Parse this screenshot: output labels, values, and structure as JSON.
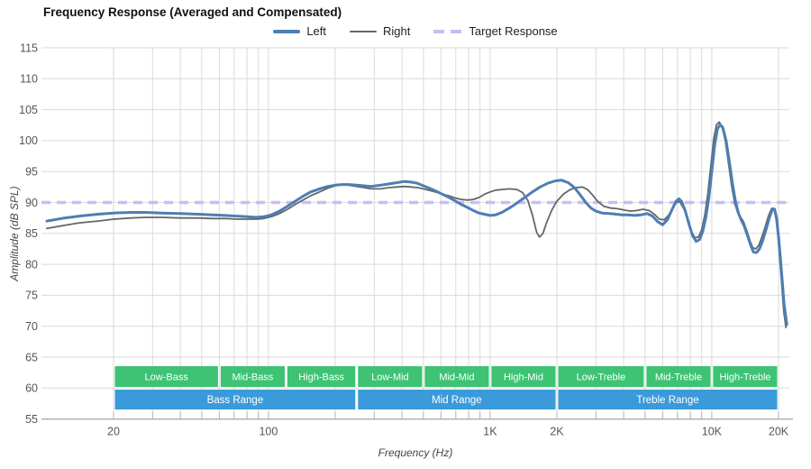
{
  "header": {
    "title": "Frequency Response (Averaged and Compensated)"
  },
  "legend": [
    {
      "id": "left",
      "label": "Left",
      "color": "#4d7eb4",
      "style": "solid-thick"
    },
    {
      "id": "right",
      "label": "Right",
      "color": "#666666",
      "style": "solid-thin"
    },
    {
      "id": "target",
      "label": "Target Response",
      "color": "#c6bef3",
      "style": "dashed"
    }
  ],
  "chart_data": {
    "type": "line",
    "title": "Frequency Response (Averaged and Compensated)",
    "xlabel": "Frequency (Hz)",
    "ylabel": "Amplitude (dB SPL)",
    "x_scale": "log",
    "xlim": [
      9.5,
      22300
    ],
    "ylim": [
      55,
      115
    ],
    "grid": true,
    "legend_position": "top-center",
    "y_ticks": [
      115,
      110,
      105,
      100,
      95,
      90,
      85,
      80,
      75,
      70,
      65,
      60,
      55
    ],
    "x_ticks": [
      {
        "f": 20,
        "label": "20"
      },
      {
        "f": 100,
        "label": "100"
      },
      {
        "f": 1000,
        "label": "1K"
      },
      {
        "f": 2000,
        "label": "2K"
      },
      {
        "f": 10000,
        "label": "10K"
      },
      {
        "f": 20000,
        "label": "20K"
      }
    ],
    "minor_gridlines": [
      20,
      30,
      40,
      50,
      60,
      70,
      80,
      90,
      100,
      200,
      300,
      400,
      500,
      600,
      700,
      800,
      900,
      1000,
      2000,
      3000,
      4000,
      5000,
      6000,
      7000,
      8000,
      9000,
      10000,
      20000
    ],
    "target": {
      "name": "Target Response",
      "db": 90,
      "color": "#c6bef3"
    },
    "series": [
      {
        "name": "Left",
        "color": "#4d7eb4",
        "width": 3,
        "points": [
          [
            10,
            87.0
          ],
          [
            12,
            87.5
          ],
          [
            14,
            87.8
          ],
          [
            17,
            88.1
          ],
          [
            20,
            88.3
          ],
          [
            24,
            88.4
          ],
          [
            28,
            88.4
          ],
          [
            33,
            88.3
          ],
          [
            40,
            88.2
          ],
          [
            48,
            88.1
          ],
          [
            56,
            88.0
          ],
          [
            64,
            87.9
          ],
          [
            72,
            87.8
          ],
          [
            80,
            87.7
          ],
          [
            88,
            87.6
          ],
          [
            95,
            87.7
          ],
          [
            103,
            88.0
          ],
          [
            112,
            88.6
          ],
          [
            122,
            89.4
          ],
          [
            132,
            90.2
          ],
          [
            143,
            91.0
          ],
          [
            155,
            91.7
          ],
          [
            170,
            92.2
          ],
          [
            185,
            92.6
          ],
          [
            200,
            92.8
          ],
          [
            215,
            92.9
          ],
          [
            230,
            92.9
          ],
          [
            250,
            92.8
          ],
          [
            270,
            92.7
          ],
          [
            290,
            92.6
          ],
          [
            320,
            92.8
          ],
          [
            350,
            93.0
          ],
          [
            380,
            93.2
          ],
          [
            410,
            93.4
          ],
          [
            440,
            93.3
          ],
          [
            470,
            93.1
          ],
          [
            500,
            92.7
          ],
          [
            540,
            92.2
          ],
          [
            580,
            91.7
          ],
          [
            620,
            91.2
          ],
          [
            660,
            90.7
          ],
          [
            700,
            90.2
          ],
          [
            740,
            89.7
          ],
          [
            790,
            89.2
          ],
          [
            840,
            88.7
          ],
          [
            890,
            88.3
          ],
          [
            940,
            88.1
          ],
          [
            1000,
            87.9
          ],
          [
            1060,
            88.0
          ],
          [
            1130,
            88.4
          ],
          [
            1220,
            89.1
          ],
          [
            1320,
            89.9
          ],
          [
            1430,
            90.8
          ],
          [
            1550,
            91.7
          ],
          [
            1680,
            92.5
          ],
          [
            1820,
            93.1
          ],
          [
            1970,
            93.5
          ],
          [
            2100,
            93.6
          ],
          [
            2250,
            93.2
          ],
          [
            2400,
            92.4
          ],
          [
            2550,
            91.2
          ],
          [
            2700,
            90.0
          ],
          [
            2850,
            89.1
          ],
          [
            3000,
            88.6
          ],
          [
            3200,
            88.3
          ],
          [
            3450,
            88.2
          ],
          [
            3700,
            88.1
          ],
          [
            3950,
            88.0
          ],
          [
            4200,
            88.0
          ],
          [
            4500,
            87.9
          ],
          [
            4800,
            88.0
          ],
          [
            5100,
            88.2
          ],
          [
            5400,
            87.8
          ],
          [
            5700,
            86.9
          ],
          [
            6000,
            86.4
          ],
          [
            6300,
            87.2
          ],
          [
            6600,
            88.8
          ],
          [
            6900,
            90.2
          ],
          [
            7100,
            90.6
          ],
          [
            7300,
            90.2
          ],
          [
            7600,
            88.6
          ],
          [
            7900,
            86.4
          ],
          [
            8200,
            84.6
          ],
          [
            8500,
            83.7
          ],
          [
            8800,
            84.0
          ],
          [
            9100,
            85.3
          ],
          [
            9400,
            87.6
          ],
          [
            9700,
            90.8
          ],
          [
            10000,
            95.0
          ],
          [
            10300,
            99.3
          ],
          [
            10600,
            101.9
          ],
          [
            10900,
            102.6
          ],
          [
            11200,
            102.1
          ],
          [
            11600,
            100.0
          ],
          [
            12000,
            96.6
          ],
          [
            12400,
            93.0
          ],
          [
            12800,
            90.1
          ],
          [
            13200,
            88.2
          ],
          [
            13600,
            87.1
          ],
          [
            14000,
            86.2
          ],
          [
            14500,
            84.6
          ],
          [
            15000,
            83.0
          ],
          [
            15400,
            82.0
          ],
          [
            15900,
            81.9
          ],
          [
            16400,
            82.5
          ],
          [
            17000,
            83.9
          ],
          [
            17600,
            85.7
          ],
          [
            18200,
            87.6
          ],
          [
            18800,
            89.0
          ],
          [
            19200,
            88.9
          ],
          [
            19600,
            87.5
          ],
          [
            20000,
            84.5
          ],
          [
            20600,
            79.0
          ],
          [
            21200,
            73.5
          ],
          [
            21800,
            70.3
          ]
        ]
      },
      {
        "name": "Right",
        "color": "#666666",
        "width": 1.8,
        "points": [
          [
            10,
            85.8
          ],
          [
            12,
            86.3
          ],
          [
            14,
            86.7
          ],
          [
            17,
            87.0
          ],
          [
            20,
            87.3
          ],
          [
            24,
            87.5
          ],
          [
            28,
            87.6
          ],
          [
            33,
            87.6
          ],
          [
            40,
            87.5
          ],
          [
            48,
            87.5
          ],
          [
            56,
            87.4
          ],
          [
            64,
            87.4
          ],
          [
            72,
            87.3
          ],
          [
            80,
            87.3
          ],
          [
            88,
            87.3
          ],
          [
            95,
            87.4
          ],
          [
            103,
            87.7
          ],
          [
            112,
            88.2
          ],
          [
            122,
            88.9
          ],
          [
            132,
            89.7
          ],
          [
            143,
            90.4
          ],
          [
            155,
            91.1
          ],
          [
            170,
            91.7
          ],
          [
            185,
            92.3
          ],
          [
            200,
            92.7
          ],
          [
            215,
            92.9
          ],
          [
            230,
            92.8
          ],
          [
            250,
            92.6
          ],
          [
            270,
            92.4
          ],
          [
            290,
            92.2
          ],
          [
            320,
            92.2
          ],
          [
            350,
            92.4
          ],
          [
            380,
            92.5
          ],
          [
            410,
            92.6
          ],
          [
            440,
            92.5
          ],
          [
            470,
            92.4
          ],
          [
            500,
            92.2
          ],
          [
            540,
            91.9
          ],
          [
            580,
            91.6
          ],
          [
            620,
            91.3
          ],
          [
            660,
            91.0
          ],
          [
            700,
            90.7
          ],
          [
            740,
            90.5
          ],
          [
            790,
            90.4
          ],
          [
            840,
            90.5
          ],
          [
            890,
            90.8
          ],
          [
            940,
            91.3
          ],
          [
            1000,
            91.7
          ],
          [
            1060,
            92.0
          ],
          [
            1130,
            92.1
          ],
          [
            1220,
            92.2
          ],
          [
            1320,
            92.1
          ],
          [
            1400,
            91.6
          ],
          [
            1480,
            90.3
          ],
          [
            1550,
            88.0
          ],
          [
            1620,
            85.2
          ],
          [
            1670,
            84.4
          ],
          [
            1730,
            85.0
          ],
          [
            1800,
            86.8
          ],
          [
            1900,
            88.8
          ],
          [
            2000,
            90.2
          ],
          [
            2150,
            91.4
          ],
          [
            2300,
            92.1
          ],
          [
            2450,
            92.4
          ],
          [
            2600,
            92.5
          ],
          [
            2750,
            92.1
          ],
          [
            2900,
            91.2
          ],
          [
            3050,
            90.2
          ],
          [
            3250,
            89.4
          ],
          [
            3500,
            89.1
          ],
          [
            3750,
            89.0
          ],
          [
            4000,
            88.8
          ],
          [
            4300,
            88.6
          ],
          [
            4600,
            88.7
          ],
          [
            4900,
            88.9
          ],
          [
            5200,
            88.7
          ],
          [
            5500,
            88.1
          ],
          [
            5800,
            87.3
          ],
          [
            6100,
            87.2
          ],
          [
            6400,
            88.0
          ],
          [
            6700,
            89.3
          ],
          [
            7000,
            90.2
          ],
          [
            7200,
            90.0
          ],
          [
            7500,
            88.9
          ],
          [
            7800,
            87.0
          ],
          [
            8100,
            85.3
          ],
          [
            8400,
            84.3
          ],
          [
            8700,
            84.4
          ],
          [
            9000,
            85.6
          ],
          [
            9300,
            88.0
          ],
          [
            9600,
            91.5
          ],
          [
            9900,
            96.0
          ],
          [
            10200,
            100.3
          ],
          [
            10500,
            102.6
          ],
          [
            10800,
            103.0
          ],
          [
            11100,
            102.3
          ],
          [
            11500,
            100.0
          ],
          [
            11900,
            96.3
          ],
          [
            12300,
            92.5
          ],
          [
            12700,
            89.8
          ],
          [
            13100,
            88.3
          ],
          [
            13500,
            87.6
          ],
          [
            13900,
            86.9
          ],
          [
            14400,
            85.4
          ],
          [
            14900,
            83.7
          ],
          [
            15300,
            82.7
          ],
          [
            15800,
            82.5
          ],
          [
            16300,
            83.1
          ],
          [
            16800,
            84.4
          ],
          [
            17400,
            86.0
          ],
          [
            18000,
            87.8
          ],
          [
            18600,
            89.0
          ],
          [
            19100,
            88.8
          ],
          [
            19500,
            87.3
          ],
          [
            19900,
            84.3
          ],
          [
            20500,
            78.5
          ],
          [
            21100,
            72.5
          ],
          [
            21600,
            69.8
          ]
        ]
      }
    ],
    "bands": {
      "sub_color": "#3dc373",
      "main_color": "#3b9ad9",
      "text_color": "#ffffff",
      "sub": [
        {
          "label": "Low-Bass",
          "from": 20,
          "to": 60
        },
        {
          "label": "Mid-Bass",
          "from": 60,
          "to": 120
        },
        {
          "label": "High-Bass",
          "from": 120,
          "to": 250
        },
        {
          "label": "Low-Mid",
          "from": 250,
          "to": 500
        },
        {
          "label": "Mid-Mid",
          "from": 500,
          "to": 1000
        },
        {
          "label": "High-Mid",
          "from": 1000,
          "to": 2000
        },
        {
          "label": "Low-Treble",
          "from": 2000,
          "to": 5000
        },
        {
          "label": "Mid-Treble",
          "from": 5000,
          "to": 10000
        },
        {
          "label": "High-Treble",
          "from": 10000,
          "to": 20000
        }
      ],
      "main": [
        {
          "label": "Bass Range",
          "from": 20,
          "to": 250
        },
        {
          "label": "Mid Range",
          "from": 250,
          "to": 2000
        },
        {
          "label": "Treble Range",
          "from": 2000,
          "to": 20000
        }
      ]
    }
  }
}
